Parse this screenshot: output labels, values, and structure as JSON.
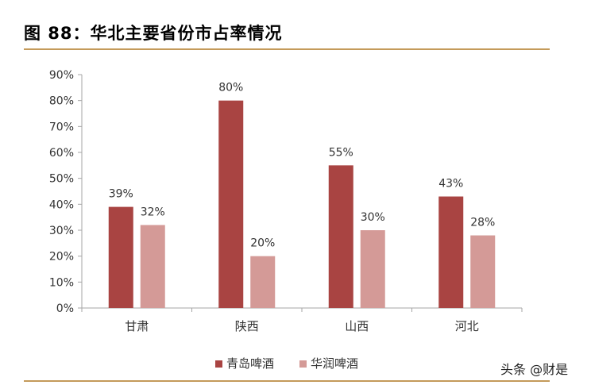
{
  "title": "图 88：华北主要省份市占率情况",
  "watermark": "头条 @财是",
  "colors": {
    "series1": "#a94442",
    "series2": "#d49a97",
    "axis": "#a6a6a6",
    "rule": "#c49a5a"
  },
  "chart_data": {
    "type": "bar",
    "categories": [
      "甘肃",
      "陕西",
      "山西",
      "河北"
    ],
    "series": [
      {
        "name": "青岛啤酒",
        "values": [
          39,
          80,
          55,
          43
        ]
      },
      {
        "name": "华润啤酒",
        "values": [
          32,
          20,
          30,
          28
        ]
      }
    ],
    "value_unit": "%",
    "ylim": [
      0,
      90
    ],
    "yticks": [
      "0%",
      "10%",
      "20%",
      "30%",
      "40%",
      "50%",
      "60%",
      "70%",
      "80%",
      "90%"
    ],
    "data_labels": [
      [
        "39%",
        "80%",
        "55%",
        "43%"
      ],
      [
        "32%",
        "20%",
        "30%",
        "28%"
      ]
    ],
    "grid": false,
    "legend": "bottom-center"
  }
}
